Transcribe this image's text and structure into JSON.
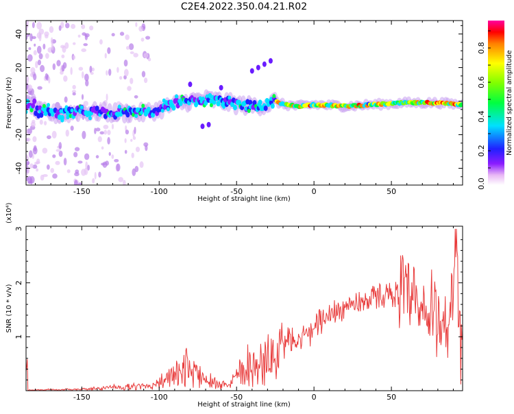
{
  "title": "C2E4.2022.350.04.21.R02",
  "chart_data": [
    {
      "type": "heatmap",
      "xlabel": "Height of straight line (km)",
      "ylabel": "Frequency (Hz)",
      "xlim": [
        -186,
        96
      ],
      "ylim": [
        -50,
        48
      ],
      "x_ticks": [
        "-150",
        "-100",
        "-50",
        "0",
        "50"
      ],
      "y_ticks": [
        "-40",
        "-20",
        "0",
        "20",
        "40"
      ],
      "colorbar": {
        "label": "Normalized spectral amplitude",
        "ticks": [
          "0.0",
          "0.2",
          "0.4",
          "0.6",
          "0.8"
        ],
        "range": [
          0,
          0.96
        ]
      },
      "signal_track": [
        {
          "x": -180,
          "y": -6
        },
        {
          "x": -165,
          "y": -8
        },
        {
          "x": -150,
          "y": -6
        },
        {
          "x": -130,
          "y": -7
        },
        {
          "x": -110,
          "y": -7
        },
        {
          "x": -100,
          "y": -5
        },
        {
          "x": -90,
          "y": -2
        },
        {
          "x": -80,
          "y": 0
        },
        {
          "x": -70,
          "y": 1
        },
        {
          "x": -60,
          "y": 0
        },
        {
          "x": -50,
          "y": -2
        },
        {
          "x": -40,
          "y": -3
        },
        {
          "x": -30,
          "y": -2
        },
        {
          "x": -25,
          "y": 0
        },
        {
          "x": -20,
          "y": -2
        },
        {
          "x": -10,
          "y": -3
        },
        {
          "x": 0,
          "y": -2
        },
        {
          "x": 20,
          "y": -3
        },
        {
          "x": 40,
          "y": -2
        },
        {
          "x": 60,
          "y": -1
        },
        {
          "x": 80,
          "y": -1
        },
        {
          "x": 95,
          "y": -2
        }
      ]
    },
    {
      "type": "line",
      "xlabel": "Height of straight line (km)",
      "ylabel": "SNR (10 * v/v)",
      "scale_label": "(x10⁴)",
      "xlim": [
        -186,
        96
      ],
      "ylim": [
        0,
        3.05
      ],
      "x_ticks": [
        "-150",
        "-100",
        "-50",
        "0",
        "50"
      ],
      "y_ticks": [
        "1",
        "2",
        "3"
      ],
      "color": "#e83a3a",
      "series": [
        {
          "x": [
            -185,
            -170,
            -155,
            -140,
            -130,
            -120,
            -110,
            -105,
            -100,
            -95,
            -90,
            -85,
            -82,
            -80,
            -78,
            -75,
            -70,
            -65,
            -60,
            -55,
            -50,
            -45,
            -42,
            -40,
            -35,
            -30,
            -25,
            -22,
            -20,
            -18,
            -15,
            -12,
            -10,
            -8,
            -5,
            -2,
            0,
            5,
            10,
            15,
            20,
            25,
            30,
            35,
            40,
            45,
            50,
            55,
            60,
            62,
            65,
            70,
            75,
            78,
            80,
            85,
            88,
            90,
            92,
            94,
            96
          ],
          "values": [
            0.01,
            0.02,
            0.02,
            0.04,
            0.06,
            0.07,
            0.08,
            0.1,
            0.16,
            0.22,
            0.28,
            0.33,
            0.45,
            0.35,
            0.4,
            0.3,
            0.25,
            0.15,
            0.12,
            0.15,
            0.3,
            0.45,
            0.5,
            0.4,
            0.48,
            0.55,
            0.6,
            0.9,
            0.7,
            0.95,
            1.0,
            0.85,
            1.1,
            0.95,
            1.2,
            1.05,
            1.25,
            1.3,
            1.4,
            1.5,
            1.55,
            1.6,
            1.65,
            1.7,
            1.75,
            1.78,
            1.8,
            1.78,
            1.75,
            1.6,
            1.55,
            1.4,
            1.3,
            1.5,
            1.35,
            1.2,
            1.55,
            1.3,
            2.9,
            0.6,
            0.5
          ]
        }
      ]
    }
  ]
}
